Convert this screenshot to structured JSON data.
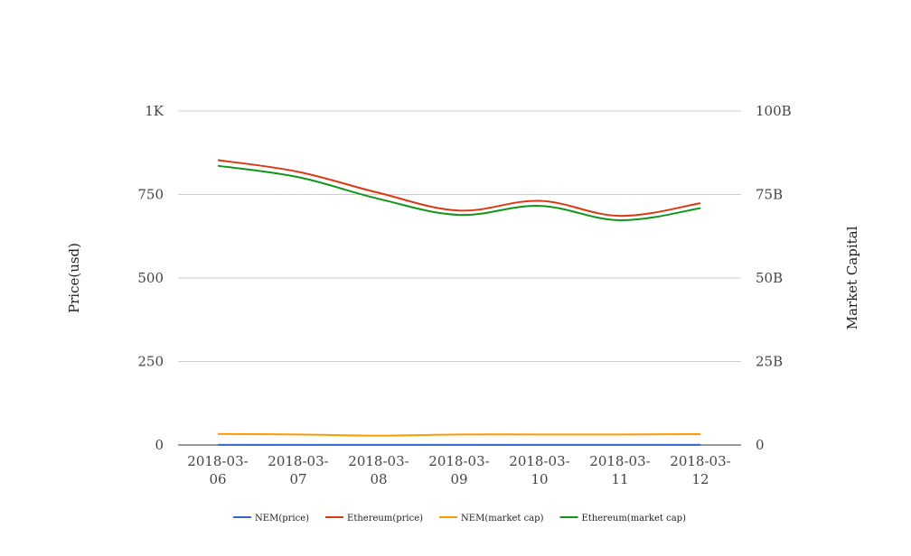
{
  "chart_data": {
    "type": "line",
    "title": "",
    "categories": [
      "2018-03-06",
      "2018-03-07",
      "2018-03-08",
      "2018-03-09",
      "2018-03-10",
      "2018-03-11",
      "2018-03-12"
    ],
    "x_tick_labels": [
      [
        "2018-03-",
        "06"
      ],
      [
        "2018-03-",
        "07"
      ],
      [
        "2018-03-",
        "08"
      ],
      [
        "2018-03-",
        "09"
      ],
      [
        "2018-03-",
        "10"
      ],
      [
        "2018-03-",
        "11"
      ],
      [
        "2018-03-",
        "12"
      ]
    ],
    "y_left": {
      "label": "Price(usd)",
      "range": [
        0,
        1000
      ],
      "ticks": [
        0,
        250,
        500,
        750,
        1000
      ],
      "tick_labels": [
        "0",
        "250",
        "500",
        "750",
        "1K"
      ]
    },
    "y_right": {
      "label": "Market Capital",
      "range": [
        0,
        100000000000
      ],
      "ticks": [
        0,
        25000000000,
        50000000000,
        75000000000,
        100000000000
      ],
      "tick_labels": [
        "0",
        "25B",
        "50B",
        "75B",
        "100B"
      ]
    },
    "grid": true,
    "legend_position": "bottom",
    "series": [
      {
        "name": "NEM(price)",
        "axis": "left",
        "color": "#3366cc",
        "values": [
          0.38,
          0.37,
          0.33,
          0.35,
          0.35,
          0.35,
          0.36
        ]
      },
      {
        "name": "Ethereum(price)",
        "axis": "left",
        "color": "#dc3912",
        "values": [
          853,
          818,
          755,
          702,
          731,
          686,
          724
        ]
      },
      {
        "name": "NEM(market cap)",
        "axis": "right",
        "color": "#ff9900",
        "values": [
          3300000000,
          3150000000,
          2800000000,
          3150000000,
          3150000000,
          3150000000,
          3250000000
        ]
      },
      {
        "name": "Ethereum(market cap)",
        "axis": "right",
        "color": "#109618",
        "values": [
          83600000000,
          80200000000,
          73700000000,
          68900000000,
          71600000000,
          67300000000,
          70900000000
        ]
      }
    ]
  }
}
